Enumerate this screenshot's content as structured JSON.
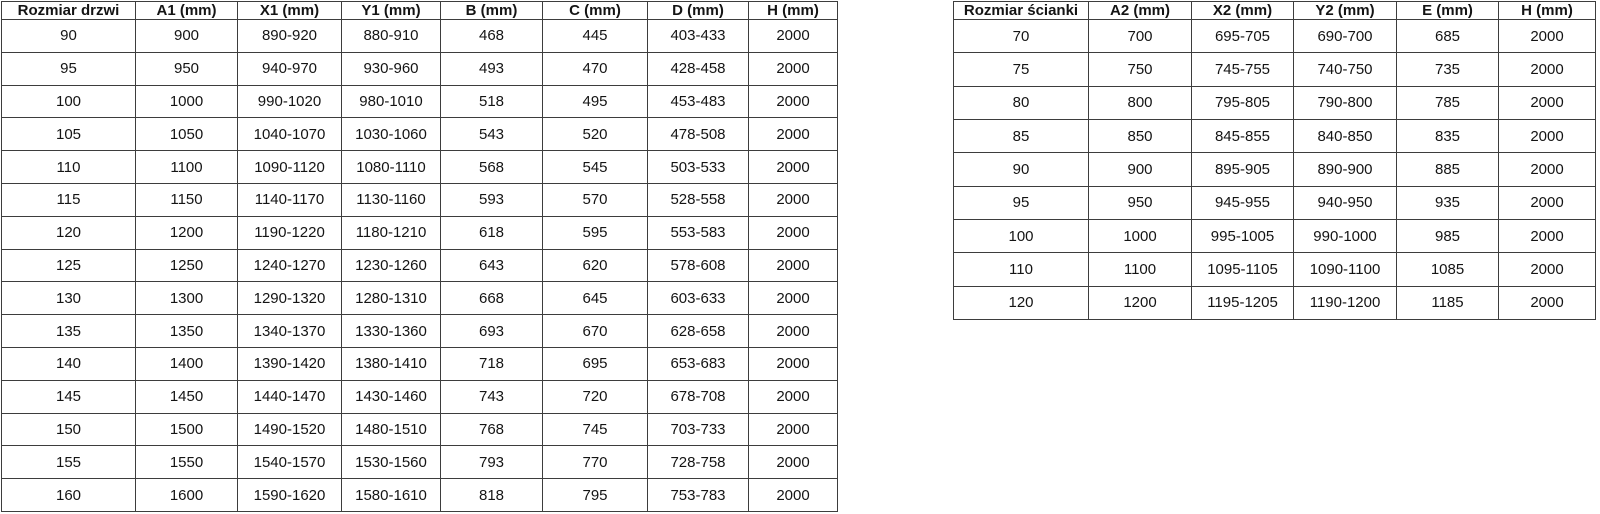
{
  "door_table": {
    "name": "door-sizes",
    "headers": [
      "Rozmiar drzwi",
      "A1 (mm)",
      "X1 (mm)",
      "Y1 (mm)",
      "B (mm)",
      "C (mm)",
      "D (mm)",
      "H (mm)"
    ],
    "rows": [
      [
        "90",
        "900",
        "890-920",
        "880-910",
        "468",
        "445",
        "403-433",
        "2000"
      ],
      [
        "95",
        "950",
        "940-970",
        "930-960",
        "493",
        "470",
        "428-458",
        "2000"
      ],
      [
        "100",
        "1000",
        "990-1020",
        "980-1010",
        "518",
        "495",
        "453-483",
        "2000"
      ],
      [
        "105",
        "1050",
        "1040-1070",
        "1030-1060",
        "543",
        "520",
        "478-508",
        "2000"
      ],
      [
        "110",
        "1100",
        "1090-1120",
        "1080-1110",
        "568",
        "545",
        "503-533",
        "2000"
      ],
      [
        "115",
        "1150",
        "1140-1170",
        "1130-1160",
        "593",
        "570",
        "528-558",
        "2000"
      ],
      [
        "120",
        "1200",
        "1190-1220",
        "1180-1210",
        "618",
        "595",
        "553-583",
        "2000"
      ],
      [
        "125",
        "1250",
        "1240-1270",
        "1230-1260",
        "643",
        "620",
        "578-608",
        "2000"
      ],
      [
        "130",
        "1300",
        "1290-1320",
        "1280-1310",
        "668",
        "645",
        "603-633",
        "2000"
      ],
      [
        "135",
        "1350",
        "1340-1370",
        "1330-1360",
        "693",
        "670",
        "628-658",
        "2000"
      ],
      [
        "140",
        "1400",
        "1390-1420",
        "1380-1410",
        "718",
        "695",
        "653-683",
        "2000"
      ],
      [
        "145",
        "1450",
        "1440-1470",
        "1430-1460",
        "743",
        "720",
        "678-708",
        "2000"
      ],
      [
        "150",
        "1500",
        "1490-1520",
        "1480-1510",
        "768",
        "745",
        "703-733",
        "2000"
      ],
      [
        "155",
        "1550",
        "1540-1570",
        "1530-1560",
        "793",
        "770",
        "728-758",
        "2000"
      ],
      [
        "160",
        "1600",
        "1590-1620",
        "1580-1610",
        "818",
        "795",
        "753-783",
        "2000"
      ]
    ]
  },
  "wall_table": {
    "name": "wall-sizes",
    "headers": [
      "Rozmiar ścianki",
      "A2 (mm)",
      "X2 (mm)",
      "Y2 (mm)",
      "E (mm)",
      "H (mm)"
    ],
    "rows": [
      [
        "70",
        "700",
        "695-705",
        "690-700",
        "685",
        "2000"
      ],
      [
        "75",
        "750",
        "745-755",
        "740-750",
        "735",
        "2000"
      ],
      [
        "80",
        "800",
        "795-805",
        "790-800",
        "785",
        "2000"
      ],
      [
        "85",
        "850",
        "845-855",
        "840-850",
        "835",
        "2000"
      ],
      [
        "90",
        "900",
        "895-905",
        "890-900",
        "885",
        "2000"
      ],
      [
        "95",
        "950",
        "945-955",
        "940-950",
        "935",
        "2000"
      ],
      [
        "100",
        "1000",
        "995-1005",
        "990-1000",
        "985",
        "2000"
      ],
      [
        "110",
        "1100",
        "1095-1105",
        "1090-1100",
        "1085",
        "2000"
      ],
      [
        "120",
        "1200",
        "1195-1205",
        "1190-1200",
        "1185",
        "2000"
      ]
    ]
  },
  "colors": {
    "border": "#3d3d3d",
    "text": "#141414",
    "background": "#ffffff"
  }
}
